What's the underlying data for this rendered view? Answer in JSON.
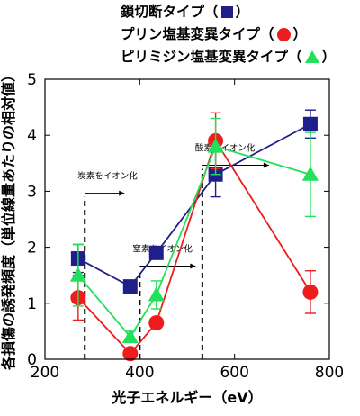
{
  "legend": {
    "items": [
      {
        "label": "鎖切断タイプ",
        "marker": "square",
        "color": "#1f1f8c"
      },
      {
        "label": "プリン塩基変異タイプ",
        "marker": "circle",
        "color": "#ee1c1c"
      },
      {
        "label": "ピリミジン塩基変異タイプ",
        "marker": "triangle",
        "color": "#22e05a"
      }
    ],
    "open_paren": "（",
    "close_paren": "）"
  },
  "chart_data": {
    "type": "line",
    "xlabel": "光子エネルギー（eV）",
    "ylabel": "各損傷の誘発頻度（単位線量あたりの相対値）",
    "xlim": [
      200,
      800
    ],
    "ylim": [
      0,
      5
    ],
    "xticks": [
      200,
      400,
      600,
      800
    ],
    "yticks": [
      0,
      1,
      2,
      3,
      4,
      5
    ],
    "grid": false,
    "series": [
      {
        "name": "鎖切断タイプ",
        "marker": "square",
        "color": "#1f1f8c",
        "x": [
          270,
          380,
          435,
          560,
          760
        ],
        "y": [
          1.8,
          1.3,
          1.9,
          3.3,
          4.2
        ],
        "err": [
          0.25,
          0.05,
          0.05,
          0.4,
          0.25
        ]
      },
      {
        "name": "プリン塩基変異タイプ",
        "marker": "circle",
        "color": "#ee1c1c",
        "x": [
          270,
          380,
          435,
          560,
          760
        ],
        "y": [
          1.1,
          0.1,
          0.65,
          3.9,
          1.2
        ],
        "err": [
          0.4,
          0.05,
          0.05,
          0.5,
          0.38
        ]
      },
      {
        "name": "ピリミジン塩基変異タイプ",
        "marker": "triangle",
        "color": "#22e05a",
        "x": [
          270,
          380,
          435,
          560,
          760
        ],
        "y": [
          1.5,
          0.4,
          1.15,
          3.8,
          3.3
        ],
        "err": [
          0.55,
          0.1,
          0.25,
          0.5,
          0.75
        ]
      }
    ],
    "edges": [
      {
        "label": "炭素をイオン化",
        "x": 284
      },
      {
        "label": "窒素をイオン化",
        "x": 400
      },
      {
        "label": "酸素をイオン化",
        "x": 532
      }
    ]
  }
}
